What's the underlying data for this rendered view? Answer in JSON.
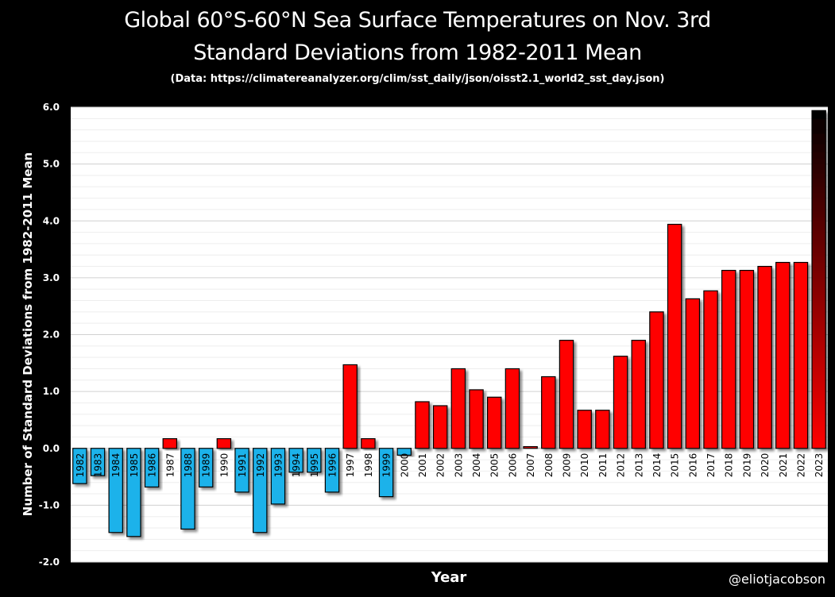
{
  "header": {
    "title_line1": "Global 60°S-60°N Sea Surface Temperatures on Nov. 3rd",
    "title_line2": "Standard Deviations from 1982-2011 Mean",
    "source": "(Data: https://climatereanalyzer.org/clim/sst_daily/json/oisst2.1_world2_sst_day.json)"
  },
  "credit": "@eliotjacobson",
  "colors": {
    "background": "#000000",
    "plot_area": "#ffffff",
    "negative_bar": "#1ab2ea",
    "positive_bar": "#ff0000",
    "last_bar_top": "#000000",
    "gridline": "#d9d9d9",
    "text": "#ffffff"
  },
  "chart_data": {
    "type": "bar",
    "title": "Global 60°S-60°N Sea Surface Temperatures on Nov. 3rd",
    "subtitle": "Standard Deviations from 1982-2011 Mean",
    "xlabel": "Year",
    "ylabel": "Number of Standard Deviations from 1982-2011 Mean",
    "ylim": [
      -2.0,
      6.0
    ],
    "yticks": [
      "-2.0",
      "-1.0",
      "0.0",
      "1.0",
      "2.0",
      "3.0",
      "4.0",
      "5.0",
      "6.0"
    ],
    "grid": true,
    "legend": "none",
    "categories": [
      "1982",
      "1983",
      "1984",
      "1985",
      "1986",
      "1987",
      "1988",
      "1989",
      "1990",
      "1991",
      "1992",
      "1993",
      "1994",
      "1995",
      "1996",
      "1997",
      "1998",
      "1999",
      "2000",
      "2001",
      "2002",
      "2003",
      "2004",
      "2005",
      "2006",
      "2007",
      "2008",
      "2009",
      "2010",
      "2011",
      "2012",
      "2013",
      "2014",
      "2015",
      "2016",
      "2017",
      "2018",
      "2019",
      "2020",
      "2021",
      "2022",
      "2023"
    ],
    "values": [
      -0.62,
      -0.48,
      -1.48,
      -1.55,
      -0.68,
      0.17,
      -1.42,
      -0.68,
      0.17,
      -0.77,
      -1.48,
      -0.98,
      -0.42,
      -0.42,
      -0.77,
      1.47,
      0.17,
      -0.85,
      -0.12,
      0.82,
      0.75,
      1.4,
      1.03,
      0.9,
      1.4,
      0.03,
      1.26,
      1.9,
      0.67,
      0.67,
      1.62,
      1.9,
      2.4,
      3.94,
      2.63,
      2.77,
      3.13,
      3.13,
      3.2,
      3.27,
      3.27,
      5.94
    ]
  }
}
